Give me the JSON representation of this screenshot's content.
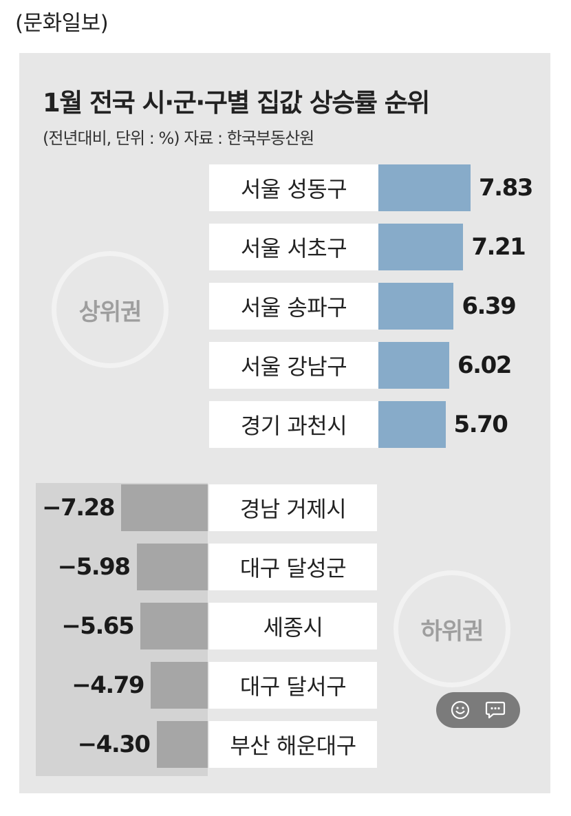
{
  "source": "(문화일보)",
  "chart_data": {
    "type": "bar",
    "title": "1월 전국 시·군·구별 집값 상승률 순위",
    "subtitle": "(전년대비, 단위 : %)  자료 : 한국부동산원",
    "top_group_label": "상위권",
    "bottom_group_label": "하위권",
    "top": {
      "categories": [
        "서울 성동구",
        "서울 서초구",
        "서울 송파구",
        "서울 강남구",
        "경기 과천시"
      ],
      "values": [
        7.83,
        7.21,
        6.39,
        6.02,
        5.7
      ],
      "labels": [
        "7.83",
        "7.21",
        "6.39",
        "6.02",
        "5.70"
      ],
      "color": "#87abc9"
    },
    "bottom": {
      "categories": [
        "경남 거제시",
        "대구 달성군",
        "세종시",
        "대구 달서구",
        "부산 해운대구"
      ],
      "values": [
        -7.28,
        -5.98,
        -5.65,
        -4.79,
        -4.3
      ],
      "labels": [
        "−7.28",
        "−5.98",
        "−5.65",
        "−4.79",
        "−4.30"
      ],
      "color": "#a6a6a6"
    },
    "panel_color": "#e7e7e7"
  },
  "widget": {
    "icons": [
      "smile-icon",
      "chat-bubble-icon"
    ]
  }
}
